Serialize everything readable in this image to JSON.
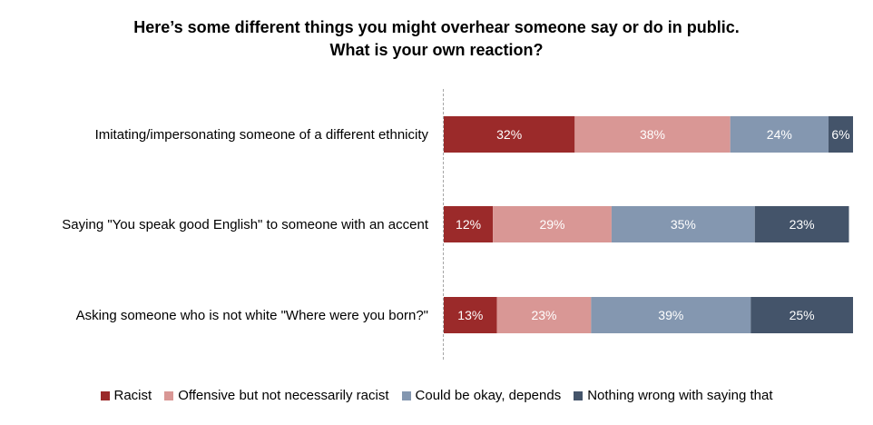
{
  "chart_data": {
    "type": "bar",
    "orientation": "horizontal",
    "stacked": true,
    "title": [
      "Here’s some different things you might overhear someone say or do in public.",
      "What is your own reaction?"
    ],
    "categories": [
      "Imitating/impersonating someone of a different ethnicity",
      "Saying \"You speak good English\" to someone with an accent",
      "Asking someone who is not white \"Where were you born?\""
    ],
    "series": [
      {
        "name": "Racist",
        "color": "#9b2a2a",
        "values": [
          32,
          12,
          13
        ],
        "labels": [
          "32%",
          "12%",
          "13%"
        ]
      },
      {
        "name": "Offensive but not necessarily racist",
        "color": "#d99795",
        "values": [
          38,
          29,
          23
        ],
        "labels": [
          "38%",
          "29%",
          "23%"
        ]
      },
      {
        "name": "Could be okay, depends",
        "color": "#8497b0",
        "values": [
          24,
          35,
          39
        ],
        "labels": [
          "24%",
          "35%",
          "39%"
        ]
      },
      {
        "name": "Nothing wrong with saying that",
        "color": "#44546a",
        "values": [
          6,
          23,
          25
        ],
        "labels": [
          "6%",
          "23%",
          "25%"
        ]
      }
    ],
    "xlim": [
      0,
      100
    ],
    "legend_position": "bottom",
    "grid": false
  }
}
